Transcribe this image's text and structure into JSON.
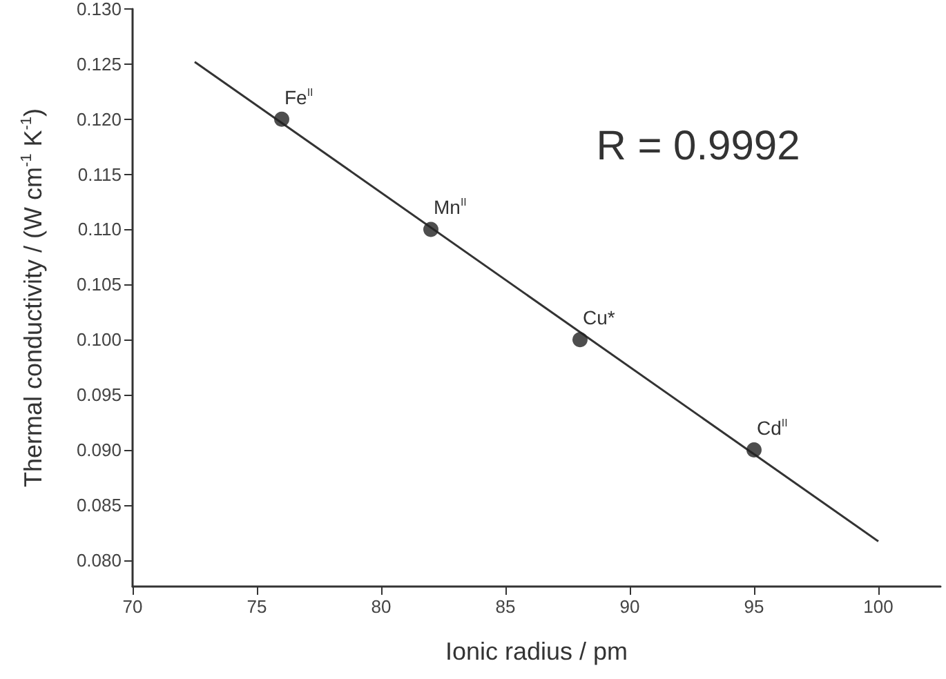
{
  "chart_data": {
    "type": "scatter",
    "xlabel": "Ionic radius / pm",
    "ylabel": "Thermal conductivity / (W cm$^{-1}$ K$^{-1}$)",
    "xlim": [
      70,
      102.5
    ],
    "xticks": [
      70,
      75,
      80,
      85,
      90,
      95,
      100
    ],
    "ylim": [
      0.0776,
      0.13
    ],
    "yticks": [
      {
        "value": 0.08,
        "label": "0.080"
      },
      {
        "value": 0.085,
        "label": "0.085"
      },
      {
        "value": 0.09,
        "label": "0.090"
      },
      {
        "value": 0.095,
        "label": "0.095"
      },
      {
        "value": 0.1,
        "label": "0.100"
      },
      {
        "value": 0.105,
        "label": "0.105"
      },
      {
        "value": 0.11,
        "label": "0.110"
      },
      {
        "value": 0.115,
        "label": "0.115"
      },
      {
        "value": 0.12,
        "label": "0.120"
      },
      {
        "value": 0.125,
        "label": "0.125"
      },
      {
        "value": 0.13,
        "label": "0.130"
      }
    ],
    "grid": false,
    "marker": "circle",
    "series": [
      {
        "color": "#222222",
        "x": [
          76,
          82,
          88,
          95
        ],
        "values": [
          0.12,
          0.11,
          0.1,
          0.09
        ]
      },
      {
        "type": "line",
        "color": "#333333",
        "x": [
          72.5,
          100
        ],
        "values": [
          0.1252,
          0.0817
        ],
        "marker": "none",
        "line_style": "solid"
      }
    ],
    "annotations": [
      {
        "text": "Fe$^{II}$",
        "x": 76,
        "y": 0.12
      },
      {
        "text": "Mn$^{II}$",
        "x": 82,
        "y": 0.11
      },
      {
        "text": "Cu*",
        "x": 88,
        "y": 0.1
      },
      {
        "text": "Cd$^{II}$",
        "x": 95,
        "y": 0.09
      },
      "R = 0.9992"
    ]
  }
}
